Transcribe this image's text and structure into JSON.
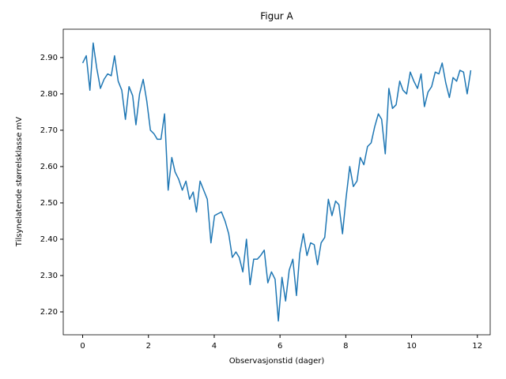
{
  "chart_data": {
    "type": "line",
    "title": "Figur A",
    "xlabel": "Observasjonstid (dager)",
    "ylabel": "Tilsynelatende størrelsklasse mV",
    "x": [
      0,
      0.11,
      0.22,
      0.32,
      0.43,
      0.54,
      0.65,
      0.76,
      0.87,
      0.97,
      1.08,
      1.19,
      1.3,
      1.41,
      1.52,
      1.62,
      1.73,
      1.84,
      1.95,
      2.06,
      2.17,
      2.27,
      2.38,
      2.49,
      2.6,
      2.71,
      2.81,
      2.92,
      3.03,
      3.14,
      3.25,
      3.36,
      3.46,
      3.57,
      3.68,
      3.79,
      3.9,
      4.01,
      4.11,
      4.22,
      4.33,
      4.44,
      4.55,
      4.66,
      4.76,
      4.87,
      4.98,
      5.09,
      5.2,
      5.31,
      5.41,
      5.52,
      5.63,
      5.74,
      5.85,
      5.95,
      6.06,
      6.17,
      6.28,
      6.39,
      6.5,
      6.6,
      6.71,
      6.82,
      6.93,
      7.04,
      7.14,
      7.25,
      7.36,
      7.47,
      7.58,
      7.69,
      7.79,
      7.9,
      8.01,
      8.12,
      8.23,
      8.34,
      8.44,
      8.55,
      8.66,
      8.77,
      8.88,
      8.99,
      9.09,
      9.2,
      9.31,
      9.42,
      9.53,
      9.64,
      9.74,
      9.85,
      9.96,
      10.07,
      10.18,
      10.29,
      10.39,
      10.5,
      10.61,
      10.72,
      10.83,
      10.93,
      11.04,
      11.15,
      11.26,
      11.37,
      11.47,
      11.58,
      11.69,
      11.8
    ],
    "series": [
      {
        "color": "#1f77b4",
        "values": [
          2.885,
          2.905,
          2.81,
          2.94,
          2.87,
          2.815,
          2.84,
          2.855,
          2.85,
          2.905,
          2.835,
          2.81,
          2.73,
          2.82,
          2.795,
          2.715,
          2.8,
          2.84,
          2.78,
          2.7,
          2.69,
          2.675,
          2.675,
          2.745,
          2.535,
          2.625,
          2.585,
          2.565,
          2.535,
          2.56,
          2.51,
          2.53,
          2.475,
          2.56,
          2.535,
          2.51,
          2.39,
          2.465,
          2.47,
          2.475,
          2.45,
          2.415,
          2.35,
          2.365,
          2.35,
          2.31,
          2.4,
          2.275,
          2.345,
          2.345,
          2.355,
          2.37,
          2.28,
          2.31,
          2.29,
          2.175,
          2.295,
          2.23,
          2.315,
          2.345,
          2.245,
          2.36,
          2.415,
          2.355,
          2.39,
          2.385,
          2.33,
          2.39,
          2.405,
          2.51,
          2.465,
          2.505,
          2.495,
          2.415,
          2.515,
          2.6,
          2.545,
          2.56,
          2.625,
          2.605,
          2.655,
          2.665,
          2.71,
          2.745,
          2.73,
          2.635,
          2.815,
          2.76,
          2.77,
          2.835,
          2.81,
          2.8,
          2.86,
          2.835,
          2.815,
          2.855,
          2.765,
          2.805,
          2.82,
          2.86,
          2.855,
          2.885,
          2.83,
          2.79,
          2.845,
          2.835,
          2.865,
          2.86,
          2.8,
          2.865
        ]
      }
    ],
    "xlim": [
      -0.59,
      12.39
    ],
    "xticks": [
      0,
      2,
      4,
      6,
      8,
      10,
      12
    ],
    "ylim": [
      2.137,
      2.978
    ],
    "yticks": [
      {
        "value": 2.2,
        "label": "2.20"
      },
      {
        "value": 2.3,
        "label": "2.30"
      },
      {
        "value": 2.4,
        "label": "2.40"
      },
      {
        "value": 2.5,
        "label": "2.50"
      },
      {
        "value": 2.6,
        "label": "2.60"
      },
      {
        "value": 2.7,
        "label": "2.70"
      },
      {
        "value": 2.8,
        "label": "2.80"
      },
      {
        "value": 2.9,
        "label": "2.90"
      }
    ]
  }
}
